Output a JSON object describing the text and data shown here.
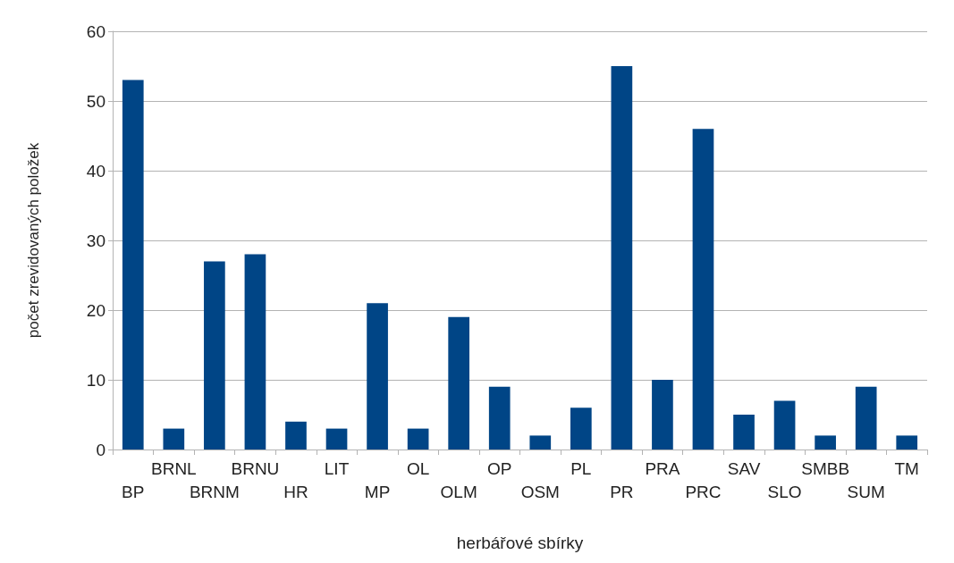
{
  "chart_data": {
    "type": "bar",
    "xlabel": "herbářové sbírky",
    "ylabel": "počet zrevidovaných položek",
    "categories": [
      "BP",
      "BRNL",
      "BRNM",
      "BRNU",
      "HR",
      "LIT",
      "MP",
      "OL",
      "OLM",
      "OP",
      "OSM",
      "PL",
      "PR",
      "PRA",
      "PRC",
      "SAV",
      "SLO",
      "SMBB",
      "SUM",
      "TM"
    ],
    "values": [
      53,
      3,
      27,
      28,
      4,
      3,
      21,
      3,
      19,
      9,
      2,
      6,
      55,
      10,
      46,
      5,
      7,
      2,
      9,
      2
    ],
    "color": "#004586",
    "ylim": [
      0,
      60
    ],
    "yticks": [
      0,
      10,
      20,
      30,
      40,
      50,
      60
    ],
    "grid": "y"
  }
}
